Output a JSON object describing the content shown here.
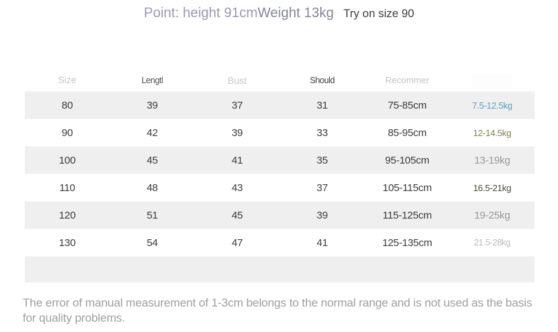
{
  "title": {
    "point": "Point: height 91cm",
    "weight": "Weight 13kg",
    "try_on": "Try on size 90"
  },
  "table": {
    "headers": [
      {
        "label": "Size"
      },
      {
        "label": "Lengtl"
      },
      {
        "label": "Bust"
      },
      {
        "label": "Should"
      },
      {
        "label": "Recommer"
      },
      {
        "label": ""
      }
    ],
    "rows": [
      {
        "size": "80",
        "length": "39",
        "bust": "37",
        "shoulder": "31",
        "recommend": "75-85cm",
        "weight": "7.5-12.5kg",
        "weight_color": "#5c9fc6"
      },
      {
        "size": "90",
        "length": "42",
        "bust": "39",
        "shoulder": "33",
        "recommend": "85-95cm",
        "weight": "12-14.5kg",
        "weight_color": "#80804a"
      },
      {
        "size": "100",
        "length": "45",
        "bust": "41",
        "shoulder": "35",
        "recommend": "95-105cm",
        "weight": "13-19kg",
        "weight_color": "#9a9a9a"
      },
      {
        "size": "110",
        "length": "48",
        "bust": "43",
        "shoulder": "37",
        "recommend": "105-115cm",
        "weight": "16.5-21kg",
        "weight_color": "#474b33"
      },
      {
        "size": "120",
        "length": "51",
        "bust": "45",
        "shoulder": "39",
        "recommend": "115-125cm",
        "weight": "19-25kg",
        "weight_color": "#9a9a9a"
      },
      {
        "size": "130",
        "length": "54",
        "bust": "47",
        "shoulder": "41",
        "recommend": "125-135cm",
        "weight": "21.5-28kg",
        "weight_color": "#b9b9b9"
      }
    ]
  },
  "footer": {
    "note": "The error of manual measurement of 1-3cm belongs to the normal range and is not used as the basis for quality problems."
  },
  "colors": {
    "row_shade": "#f0eff0",
    "title_point": "#9899b6",
    "title_weight": "#84869c",
    "title_tryon": "#3b3c45"
  }
}
